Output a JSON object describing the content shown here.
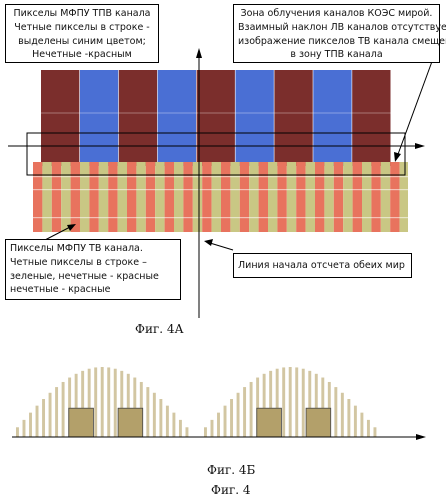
{
  "labels": {
    "tpv_pixels": {
      "line1": "Пикселы МФПУ ТПВ канала",
      "line2": "Четные пикселы в строке  -",
      "line3": "выделены  синим цветом;",
      "line4": "Нечетные -красным"
    },
    "irradiation_zone": {
      "line1": "Зона облучения каналов КОЭС  мирой.",
      "line2": "Взаимный наклон ЛВ каналов отсутствует;",
      "line3": "изображение пикселов ТВ канала смещено",
      "line4": "в зону ТПВ канала"
    },
    "tv_pixels": {
      "line1": "Пикселы МФПУ ТВ канала.",
      "line2": "Четные пикселы в строке –",
      "line3": "зеленые, нечетные - красные",
      "line4": "нечетные - красные"
    },
    "origin_line": "Линия начала отсчета обеих мир"
  },
  "captions": {
    "fig_4a": "Фиг. 4А",
    "fig_4b": "Фиг. 4Б",
    "fig_4": "Фиг. 4"
  },
  "colors": {
    "tpv_odd": "#7b2e2c",
    "tpv_even": "#4a6fd4",
    "tv_red": "#e8735e",
    "tv_green": "#c9c784",
    "bar_light": "#d2c6a2",
    "bar_dark": "#b3a06a"
  }
}
